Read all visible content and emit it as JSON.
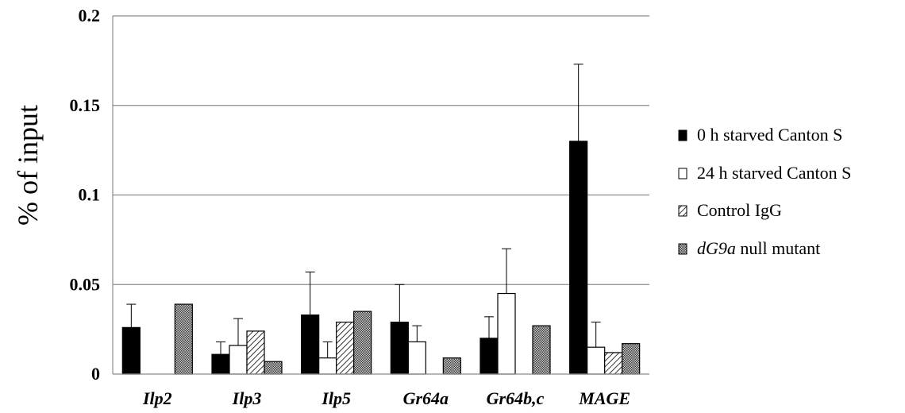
{
  "chart_data": {
    "type": "bar",
    "title": "",
    "xlabel": "",
    "ylabel": "% of input",
    "ylim": [
      0,
      0.2
    ],
    "yticks": [
      "0",
      "0.05",
      "0.1",
      "0.15",
      "0.2"
    ],
    "ytick_values": [
      0,
      0.05,
      0.1,
      0.15,
      0.2
    ],
    "grid": "horizontal",
    "legend_position": "right",
    "categories": [
      "Ilp2",
      "Ilp3",
      "Ilp5",
      "Gr64a",
      "Gr64b,c",
      "MAGE"
    ],
    "series": [
      {
        "name": "0 h starved Canton S",
        "legend_prefix": "",
        "legend_suffix": "0 h starved Canton S",
        "values": [
          0.026,
          0.011,
          0.033,
          0.029,
          0.02,
          0.13
        ],
        "errors": [
          0.013,
          0.007,
          0.024,
          0.021,
          0.012,
          0.043
        ],
        "fill": "black"
      },
      {
        "name": "24 h starved Canton S",
        "legend_prefix": "",
        "legend_suffix": "24 h starved Canton S",
        "values": [
          0,
          0.016,
          0.009,
          0.018,
          0.045,
          0.015
        ],
        "errors": [
          0,
          0.015,
          0.009,
          0.009,
          0.025,
          0.014
        ],
        "fill": "white"
      },
      {
        "name": "Control IgG",
        "legend_prefix": "",
        "legend_suffix": "Control IgG",
        "values": [
          0,
          0.024,
          0.029,
          0,
          0,
          0.012
        ],
        "errors": [
          0,
          0,
          0,
          0,
          0,
          0
        ],
        "fill": "diagonal"
      },
      {
        "name": "dG9a null mutant",
        "legend_prefix": "dG9a",
        "legend_suffix": " null mutant",
        "values": [
          0.039,
          0.007,
          0.035,
          0.009,
          0.027,
          0.017
        ],
        "errors": [
          0,
          0,
          0,
          0,
          0,
          0
        ],
        "fill": "dots"
      }
    ]
  }
}
